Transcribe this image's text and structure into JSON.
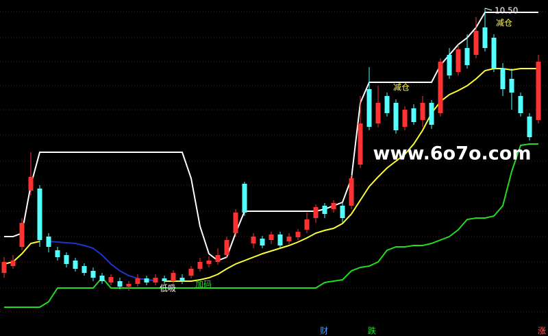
{
  "chart_data": {
    "type": "candlestick",
    "ylim": [
      5.72,
      10.62
    ],
    "up_color": "#ff3232",
    "down_color": "#54ffff",
    "open": [
      6.64,
      6.74,
      7.02,
      7.84,
      7.87,
      7.17,
      6.97,
      6.9,
      6.82,
      6.74,
      6.67,
      6.6,
      6.5,
      6.52,
      6.44,
      6.48,
      6.56,
      6.5,
      6.56,
      6.52,
      6.57,
      6.6,
      6.7,
      6.77,
      6.8,
      6.9,
      7.22,
      7.94,
      7.07,
      7.14,
      7.12,
      7.2,
      7.1,
      7.16,
      7.27,
      7.44,
      7.62,
      7.57,
      7.62,
      7.62,
      8.22,
      9.32,
      8.82,
      9.22,
      9.12,
      8.77,
      9.04,
      8.87,
      9.12,
      8.97,
      9.82,
      9.57,
      9.92,
      9.82,
      10.22,
      10.07,
      9.62,
      9.47,
      9.22,
      8.92,
      8.87
    ],
    "high": [
      6.87,
      6.9,
      7.44,
      8.4,
      7.92,
      7.22,
      7.02,
      6.94,
      6.86,
      6.78,
      6.72,
      6.64,
      6.62,
      6.57,
      6.52,
      6.62,
      6.6,
      6.62,
      6.6,
      6.68,
      6.62,
      6.74,
      6.86,
      6.88,
      7.0,
      7.17,
      7.57,
      7.97,
      7.22,
      7.18,
      7.24,
      7.24,
      7.22,
      7.28,
      7.52,
      7.64,
      7.66,
      7.7,
      7.68,
      8.07,
      9.22,
      9.64,
      9.37,
      9.27,
      9.17,
      9.07,
      9.1,
      9.22,
      9.16,
      9.77,
      9.92,
      9.97,
      10.12,
      10.37,
      10.5,
      10.12,
      9.7,
      9.62,
      9.27,
      8.97,
      9.82
    ],
    "low": [
      6.57,
      6.7,
      6.97,
      7.77,
      7.02,
      6.94,
      6.82,
      6.72,
      6.66,
      6.6,
      6.52,
      6.48,
      6.46,
      6.4,
      6.38,
      6.44,
      6.46,
      6.46,
      6.48,
      6.48,
      6.48,
      6.56,
      6.66,
      6.72,
      6.76,
      6.86,
      7.17,
      7.47,
      7.0,
      7.0,
      7.06,
      7.0,
      7.06,
      7.12,
      7.22,
      7.37,
      7.44,
      7.52,
      7.37,
      7.57,
      8.17,
      8.72,
      8.76,
      8.92,
      8.67,
      8.72,
      8.8,
      8.77,
      8.74,
      8.92,
      9.47,
      9.52,
      9.62,
      9.77,
      9.87,
      9.57,
      9.22,
      9.02,
      8.92,
      8.57,
      8.82
    ],
    "close": [
      6.8,
      6.82,
      7.37,
      8.04,
      7.12,
      7.02,
      6.87,
      6.77,
      6.7,
      6.64,
      6.57,
      6.52,
      6.58,
      6.44,
      6.48,
      6.56,
      6.5,
      6.57,
      6.52,
      6.64,
      6.52,
      6.7,
      6.8,
      6.82,
      6.9,
      7.12,
      7.52,
      7.52,
      7.17,
      7.04,
      7.2,
      7.04,
      7.17,
      7.24,
      7.42,
      7.6,
      7.5,
      7.66,
      7.44,
      8.02,
      8.82,
      8.77,
      9.12,
      8.97,
      8.72,
      9.02,
      8.84,
      9.12,
      8.8,
      9.72,
      9.52,
      9.9,
      9.67,
      10.17,
      9.92,
      9.62,
      9.32,
      9.27,
      8.97,
      8.62,
      9.72
    ],
    "lines": [
      {
        "color": "#ffffff",
        "values": [
          7.17,
          7.17,
          7.22,
          7.92,
          8.4,
          8.4,
          8.4,
          8.4,
          8.4,
          8.4,
          8.4,
          8.4,
          8.4,
          8.4,
          8.4,
          8.4,
          8.4,
          8.4,
          8.4,
          8.4,
          8.4,
          8.02,
          7.32,
          6.92,
          6.82,
          6.87,
          7.22,
          7.54,
          7.54,
          7.54,
          7.54,
          7.54,
          7.54,
          7.54,
          7.54,
          7.54,
          7.57,
          7.62,
          7.67,
          8.02,
          9.12,
          9.42,
          9.42,
          9.42,
          9.42,
          9.42,
          9.42,
          9.42,
          9.42,
          9.67,
          9.82,
          9.97,
          10.07,
          10.22,
          10.44,
          10.44,
          10.44,
          10.44,
          10.44,
          10.44,
          10.44
        ]
      },
      {
        "color": "#ffff33",
        "values": [
          6.77,
          6.8,
          6.92,
          7.07,
          7.1,
          null,
          null,
          null,
          null,
          null,
          null,
          null,
          null,
          null,
          null,
          null,
          null,
          null,
          6.52,
          6.52,
          6.52,
          6.52,
          6.54,
          6.57,
          6.62,
          6.7,
          6.77,
          6.82,
          6.87,
          6.92,
          6.96,
          7.0,
          7.04,
          7.09,
          7.15,
          7.22,
          7.26,
          7.29,
          7.36,
          7.5,
          7.7,
          7.9,
          8.04,
          8.17,
          8.27,
          8.37,
          8.52,
          8.72,
          8.97,
          9.14,
          9.24,
          9.3,
          9.37,
          9.47,
          9.59,
          9.62,
          9.62,
          9.6,
          9.62,
          9.62,
          9.62
        ]
      },
      {
        "color": "#2233cc",
        "values": [
          null,
          null,
          null,
          null,
          null,
          7.1,
          7.09,
          7.08,
          7.07,
          7.04,
          7.0,
          6.9,
          6.77,
          6.67,
          6.6,
          6.56,
          6.54,
          6.53,
          null,
          null,
          null,
          null,
          null,
          null,
          null,
          null,
          null,
          null,
          null,
          null,
          null,
          null,
          null,
          null,
          null,
          null,
          null,
          null,
          null,
          null,
          null,
          null,
          null,
          null,
          null,
          null,
          null,
          null,
          null,
          null,
          null,
          null,
          null,
          null,
          null,
          null,
          null,
          null,
          null,
          null,
          null
        ]
      },
      {
        "color": "#22dd22",
        "values": [
          6.14,
          6.14,
          6.14,
          6.14,
          6.14,
          6.22,
          6.42,
          6.42,
          6.42,
          6.42,
          6.42,
          6.57,
          6.42,
          6.42,
          6.42,
          6.42,
          6.42,
          6.42,
          6.42,
          6.42,
          6.42,
          6.42,
          6.42,
          6.42,
          6.42,
          6.42,
          6.42,
          6.42,
          6.42,
          6.42,
          6.42,
          6.42,
          6.42,
          6.42,
          6.42,
          6.42,
          6.5,
          6.52,
          6.54,
          6.67,
          6.72,
          6.74,
          6.8,
          6.97,
          7.02,
          7.02,
          7.04,
          7.04,
          7.07,
          7.12,
          7.17,
          7.27,
          7.42,
          7.44,
          7.44,
          7.47,
          7.62,
          8.12,
          8.5,
          8.52,
          8.52
        ]
      }
    ],
    "max_label": "10.50",
    "annotations": [
      "减仓",
      "减仓",
      "低吸",
      "加码"
    ],
    "watermark": "www.6o7o.com",
    "footer_labels": [
      "财",
      "跌",
      "涨"
    ]
  }
}
